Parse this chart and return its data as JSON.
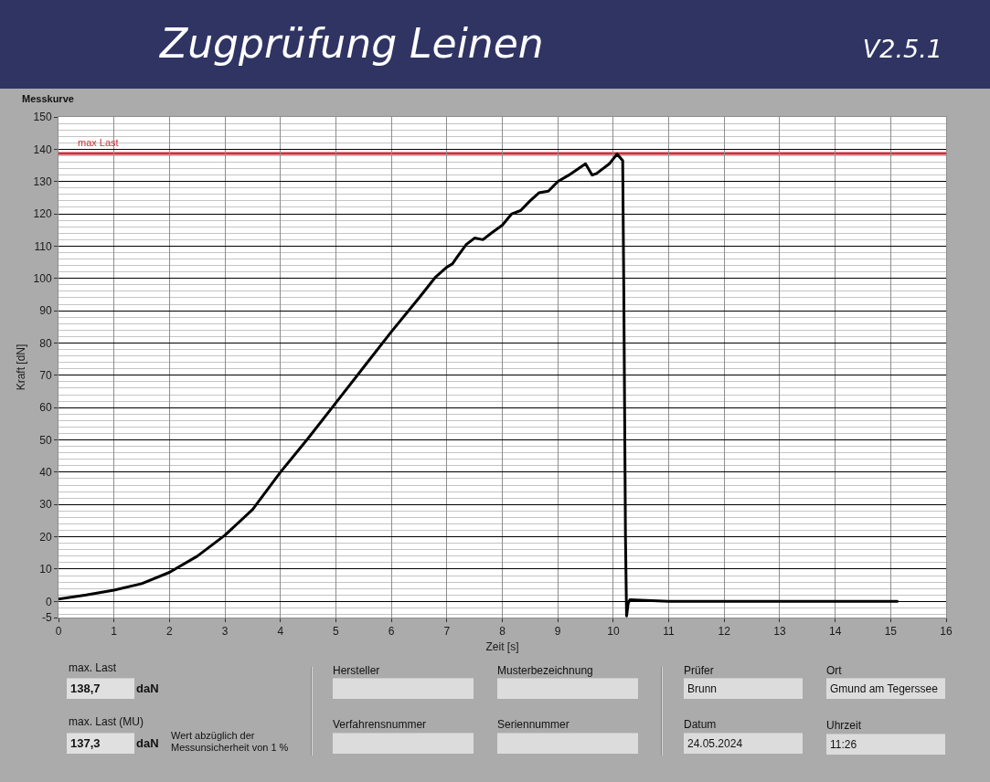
{
  "chart_data": {
    "type": "line",
    "title": "Zugprüfung Leinen",
    "subtitle": "Messkurve",
    "xlabel": "Zeit [s]",
    "ylabel": "Kraft [dN]",
    "annotations": [
      "V2.5.1",
      "max. Last",
      "138,7",
      "daN",
      "max. Last (MU)",
      "137,3",
      "daN",
      "Wert abzüglich der Messunsicherheit von 1 %",
      "Hersteller",
      "Musterbezeichnung",
      "Verfahrensnummer",
      "Seriennummer",
      "Prüfer",
      "Brunn",
      "Ort",
      "Gmund am Tegerssee",
      "Datum",
      "24.05.2024",
      "Uhrzeit",
      "11:26"
    ],
    "x": [
      0,
      0.5,
      1,
      1.5,
      2,
      2.5,
      3,
      3.5,
      4,
      4.5,
      5,
      5.5,
      6,
      6.5,
      6.8,
      7,
      7.1,
      7.2,
      7.35,
      7.5,
      7.65,
      7.8,
      8,
      8.17,
      8.33,
      8.5,
      8.66,
      8.83,
      9,
      9.2,
      9.5,
      9.62,
      9.7,
      9.93,
      10.07,
      10.17,
      10.19,
      10.22,
      10.24,
      10.27,
      10.3,
      11,
      12,
      13,
      14,
      15.12
    ],
    "series": [
      {
        "color": "#000000",
        "values": [
          0.7,
          2,
          3.5,
          5.5,
          9,
          14,
          20.5,
          28.5,
          40,
          50.5,
          61.5,
          72.5,
          83.5,
          94,
          100.5,
          103.5,
          104.5,
          107,
          110.5,
          112.5,
          112,
          114,
          116.5,
          120,
          121,
          124,
          126.5,
          127,
          130,
          132,
          135.5,
          132,
          132.5,
          135.5,
          138.5,
          136.5,
          96,
          20,
          -4.5,
          -0.5,
          0.5,
          0,
          0,
          0,
          0,
          0
        ]
      }
    ],
    "xlim": [
      0,
      16
    ],
    "xticks": [
      0,
      1,
      2,
      3,
      4,
      5,
      6,
      7,
      8,
      9,
      10,
      11,
      12,
      13,
      14,
      15,
      16
    ],
    "ylim": [
      -5,
      150
    ],
    "yticks": [
      -5,
      0,
      10,
      20,
      30,
      40,
      50,
      60,
      70,
      80,
      90,
      100,
      110,
      120,
      130,
      140,
      150,
      {
        "value": -4,
        "label": null
      },
      {
        "value": -2,
        "label": null
      },
      {
        "value": 2,
        "label": null
      },
      {
        "value": 4,
        "label": null
      },
      {
        "value": 6,
        "label": null
      },
      {
        "value": 8,
        "label": null
      },
      {
        "value": 12,
        "label": null
      },
      {
        "value": 14,
        "label": null
      },
      {
        "value": 16,
        "label": null
      },
      {
        "value": 18,
        "label": null
      },
      {
        "value": 22,
        "label": null
      },
      {
        "value": 24,
        "label": null
      },
      {
        "value": 26,
        "label": null
      },
      {
        "value": 28,
        "label": null
      },
      {
        "value": 32,
        "label": null
      },
      {
        "value": 34,
        "label": null
      },
      {
        "value": 36,
        "label": null
      },
      {
        "value": 38,
        "label": null
      },
      {
        "value": 42,
        "label": null
      },
      {
        "value": 44,
        "label": null
      },
      {
        "value": 46,
        "label": null
      },
      {
        "value": 48,
        "label": null
      },
      {
        "value": 52,
        "label": null
      },
      {
        "value": 54,
        "label": null
      },
      {
        "value": 56,
        "label": null
      },
      {
        "value": 58,
        "label": null
      },
      {
        "value": 62,
        "label": null
      },
      {
        "value": 64,
        "label": null
      },
      {
        "value": 66,
        "label": null
      },
      {
        "value": 68,
        "label": null
      },
      {
        "value": 72,
        "label": null
      },
      {
        "value": 74,
        "label": null
      },
      {
        "value": 76,
        "label": null
      },
      {
        "value": 78,
        "label": null
      },
      {
        "value": 82,
        "label": null
      },
      {
        "value": 84,
        "label": null
      },
      {
        "value": 86,
        "label": null
      },
      {
        "value": 88,
        "label": null
      },
      {
        "value": 92,
        "label": null
      },
      {
        "value": 94,
        "label": null
      },
      {
        "value": 96,
        "label": null
      },
      {
        "value": 98,
        "label": null
      },
      {
        "value": 102,
        "label": null
      },
      {
        "value": 104,
        "label": null
      },
      {
        "value": 106,
        "label": null
      },
      {
        "value": 108,
        "label": null
      },
      {
        "value": 112,
        "label": null
      },
      {
        "value": 114,
        "label": null
      },
      {
        "value": 116,
        "label": null
      },
      {
        "value": 118,
        "label": null
      },
      {
        "value": 122,
        "label": null
      },
      {
        "value": 124,
        "label": null
      },
      {
        "value": 126,
        "label": null
      },
      {
        "value": 128,
        "label": null
      },
      {
        "value": 132,
        "label": null
      },
      {
        "value": 134,
        "label": null
      },
      {
        "value": 136,
        "label": null
      },
      {
        "value": 138,
        "label": null
      },
      {
        "value": 142,
        "label": null
      },
      {
        "value": 144,
        "label": null
      },
      {
        "value": 146,
        "label": null
      },
      {
        "value": 148,
        "label": null
      }
    ],
    "ref_lines": [
      {
        "axis": "y",
        "value": 138.7,
        "label": "max Last",
        "color": "#c8323c"
      }
    ],
    "grid": true
  }
}
